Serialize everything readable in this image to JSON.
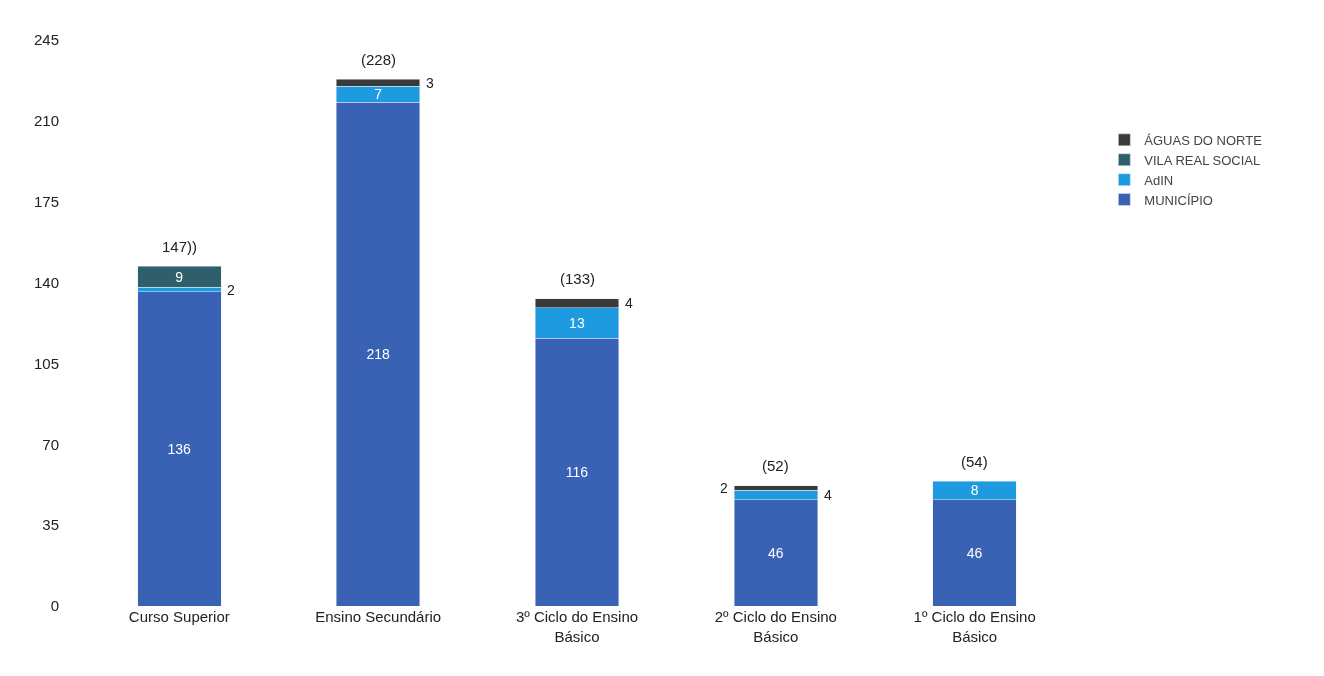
{
  "chart_data": {
    "type": "bar",
    "stacked": true,
    "categories": [
      "Curso Superior",
      "Ensino Secundário",
      "3º Ciclo do Ensino Básico",
      "2º Ciclo do Ensino Básico",
      "1º Ciclo do Ensino Básico"
    ],
    "series": [
      {
        "name": "MUNICÍPIO",
        "color": "#3a62b4",
        "values": [
          136,
          218,
          116,
          46,
          46
        ]
      },
      {
        "name": "AdIN",
        "color": "#1e9be0",
        "values": [
          2,
          7,
          13,
          4,
          8
        ]
      },
      {
        "name": "VILA REAL SOCIAL",
        "color": "#2f5f6a",
        "values": [
          9,
          null,
          null,
          null,
          null
        ]
      },
      {
        "name": "ÁGUAS DO NORTE",
        "color": "#3a3a3a",
        "values": [
          null,
          3,
          4,
          2,
          null
        ]
      }
    ],
    "totals": [
      "147))",
      "(228)",
      "(133)",
      "(52)",
      "(54)"
    ],
    "data_labels": true,
    "ylim": [
      0,
      245
    ],
    "yticks": [
      0,
      35,
      70,
      105,
      140,
      175,
      210,
      245
    ],
    "legend": "right"
  }
}
